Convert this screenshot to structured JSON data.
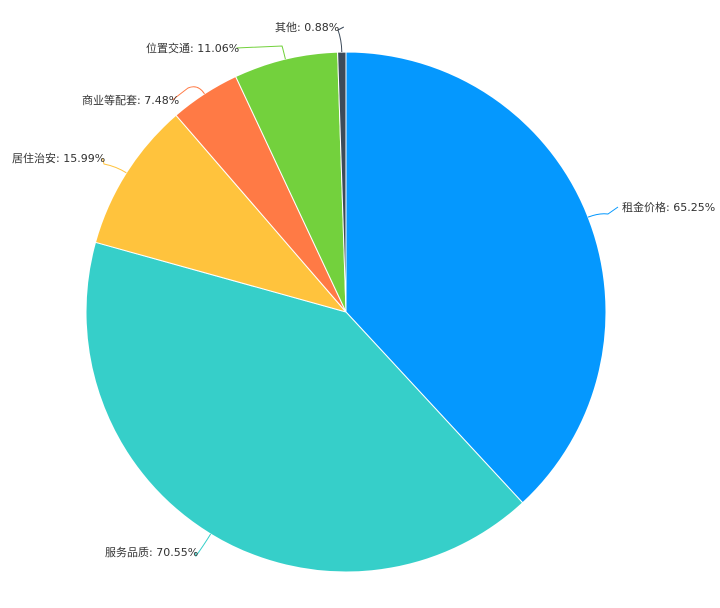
{
  "chart_data": {
    "type": "pie",
    "title": "",
    "start": "top",
    "direction": "clockwise",
    "slices": [
      {
        "label": "租金价格",
        "value": 65.25,
        "display": "租金价格: 65.25%",
        "color": "#0598fe"
      },
      {
        "label": "服务品质",
        "value": 70.55,
        "display": "服务品质: 70.55%",
        "color": "#36cfc9"
      },
      {
        "label": "居住治安",
        "value": 15.99,
        "display": "居住治安: 15.99%",
        "color": "#ffc33d"
      },
      {
        "label": "商业等配套",
        "value": 7.48,
        "display": "商业等配套: 7.48%",
        "color": "#ff7a45"
      },
      {
        "label": "位置交通",
        "value": 11.06,
        "display": "位置交通: 11.06%",
        "color": "#73d13d"
      },
      {
        "label": "其他",
        "value": 0.88,
        "display": "其他: 0.88%",
        "color": "#3d4b5a"
      }
    ]
  }
}
